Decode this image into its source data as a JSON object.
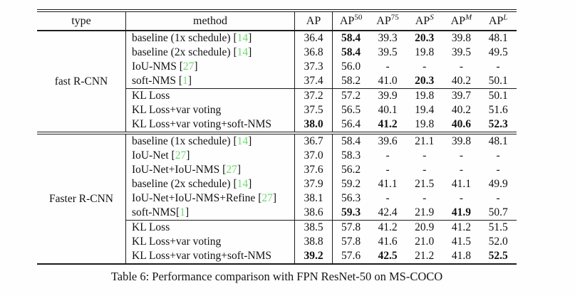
{
  "colors": {
    "citation_green": "#6fd96f",
    "rule_black": "#1c1c1c"
  },
  "table": {
    "caption": "Table 6: Performance comparison with FPN ResNet-50 on MS-COCO",
    "columns": [
      {
        "key": "type",
        "label": "type"
      },
      {
        "key": "method",
        "label": "method"
      },
      {
        "key": "ap",
        "base": "AP",
        "sup": ""
      },
      {
        "key": "ap50",
        "base": "AP",
        "sup": "50",
        "sup_italic": false
      },
      {
        "key": "ap75",
        "base": "AP",
        "sup": "75",
        "sup_italic": false
      },
      {
        "key": "aps",
        "base": "AP",
        "sup": "S",
        "sup_italic": true
      },
      {
        "key": "apm",
        "base": "AP",
        "sup": "M",
        "sup_italic": true
      },
      {
        "key": "apl",
        "base": "AP",
        "sup": "L",
        "sup_italic": true
      }
    ],
    "groups": [
      {
        "type": "fast R-CNN",
        "subgroups": [
          {
            "rows": [
              {
                "method": "baseline (1x schedule) ",
                "cite": "14",
                "values": [
                  "36.4",
                  "58.4",
                  "39.3",
                  "20.3",
                  "39.8",
                  "48.1"
                ],
                "bold": [
                  false,
                  true,
                  false,
                  true,
                  false,
                  false
                ]
              },
              {
                "method": "baseline (2x schedule) ",
                "cite": "14",
                "values": [
                  "36.8",
                  "58.4",
                  "39.5",
                  "19.8",
                  "39.5",
                  "49.5"
                ],
                "bold": [
                  false,
                  true,
                  false,
                  false,
                  false,
                  false
                ]
              },
              {
                "method": "IoU-NMS ",
                "cite": "27",
                "values": [
                  "37.3",
                  "56.0",
                  "-",
                  "-",
                  "-",
                  "-"
                ]
              },
              {
                "method": "soft-NMS ",
                "cite": "1",
                "values": [
                  "37.4",
                  "58.2",
                  "41.0",
                  "20.3",
                  "40.2",
                  "50.1"
                ],
                "bold": [
                  false,
                  false,
                  false,
                  true,
                  false,
                  false
                ]
              }
            ]
          },
          {
            "rows": [
              {
                "method": "KL Loss",
                "values": [
                  "37.2",
                  "57.2",
                  "39.9",
                  "19.8",
                  "39.7",
                  "50.1"
                ]
              },
              {
                "method": "KL Loss+var voting",
                "values": [
                  "37.5",
                  "56.5",
                  "40.1",
                  "19.4",
                  "40.2",
                  "51.6"
                ]
              },
              {
                "method": "KL Loss+var voting+soft-NMS",
                "values": [
                  "38.0",
                  "56.4",
                  "41.2",
                  "19.8",
                  "40.6",
                  "52.3"
                ],
                "bold": [
                  true,
                  false,
                  true,
                  false,
                  true,
                  true
                ]
              }
            ]
          }
        ]
      },
      {
        "type": "Faster R-CNN",
        "subgroups": [
          {
            "rows": [
              {
                "method": "baseline (1x schedule) ",
                "cite": "14",
                "values": [
                  "36.7",
                  "58.4",
                  "39.6",
                  "21.1",
                  "39.8",
                  "48.1"
                ]
              },
              {
                "method": "IoU-Net ",
                "cite": "27",
                "values": [
                  "37.0",
                  "58.3",
                  "-",
                  "-",
                  "-",
                  "-"
                ]
              },
              {
                "method": "IoU-Net+IoU-NMS ",
                "cite": "27",
                "values": [
                  "37.6",
                  "56.2",
                  "-",
                  "-",
                  "-",
                  "-"
                ]
              },
              {
                "method": "baseline (2x schedule) ",
                "cite": "14",
                "values": [
                  "37.9",
                  "59.2",
                  "41.1",
                  "21.5",
                  "41.1",
                  "49.9"
                ]
              },
              {
                "method": "IoU-Net+IoU-NMS+Refine ",
                "cite": "27",
                "values": [
                  "38.1",
                  "56.3",
                  "-",
                  "-",
                  "-",
                  "-"
                ]
              },
              {
                "method": "soft-NMS",
                "cite": "1",
                "values": [
                  "38.6",
                  "59.3",
                  "42.4",
                  "21.9",
                  "41.9",
                  "50.7"
                ],
                "bold": [
                  false,
                  true,
                  false,
                  false,
                  true,
                  false
                ]
              }
            ]
          },
          {
            "rows": [
              {
                "method": "KL Loss",
                "values": [
                  "38.5",
                  "57.8",
                  "41.2",
                  "20.9",
                  "41.2",
                  "51.5"
                ]
              },
              {
                "method": "KL Loss+var voting",
                "values": [
                  "38.8",
                  "57.8",
                  "41.6",
                  "21.0",
                  "41.5",
                  "52.0"
                ]
              },
              {
                "method": "KL Loss+var voting+soft-NMS",
                "values": [
                  "39.2",
                  "57.6",
                  "42.5",
                  "21.2",
                  "41.8",
                  "52.5"
                ],
                "bold": [
                  true,
                  false,
                  true,
                  false,
                  false,
                  true
                ]
              }
            ]
          }
        ]
      }
    ]
  }
}
